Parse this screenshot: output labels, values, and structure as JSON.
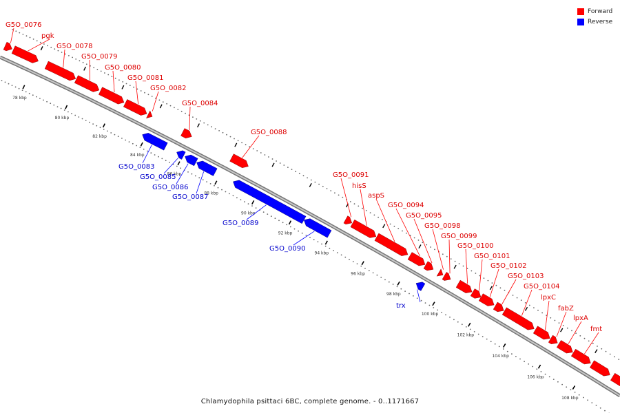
{
  "legend": {
    "forward_label": "Forward",
    "reverse_label": "Reverse",
    "forward_color": "#ff0000",
    "reverse_color": "#0000ff"
  },
  "caption": "Chlamydophila psittaci 6BC, complete genome. - 0..1171667",
  "ticks": [
    "78 kbp",
    "80 kbp",
    "82 kbp",
    "84 kbp",
    "86 kbp",
    "88 kbp",
    "90 kbp",
    "92 kbp",
    "94 kbp",
    "96 kbp",
    "98 kbp",
    "100 kbp",
    "102 kbp",
    "104 kbp",
    "106 kbp",
    "108 kbp"
  ],
  "forward_genes": [
    "G5O_0076",
    "pgk",
    "G5O_0078",
    "G5O_0079",
    "G5O_0080",
    "G5O_0081",
    "G5O_0082",
    "G5O_0084",
    "G5O_0088",
    "G5O_0091",
    "hisS",
    "aspS",
    "G5O_0094",
    "G5O_0095",
    "G5O_0098",
    "G5O_0099",
    "G5O_0100",
    "G5O_0101",
    "G5O_0102",
    "G5O_0103",
    "G5O_0104",
    "lpxC",
    "fabZ",
    "lpxA",
    "fmt"
  ],
  "reverse_genes": [
    "G5O_0083",
    "G5O_0085",
    "G5O_0086",
    "G5O_0087",
    "G5O_0089",
    "G5O_0090",
    "trx"
  ]
}
